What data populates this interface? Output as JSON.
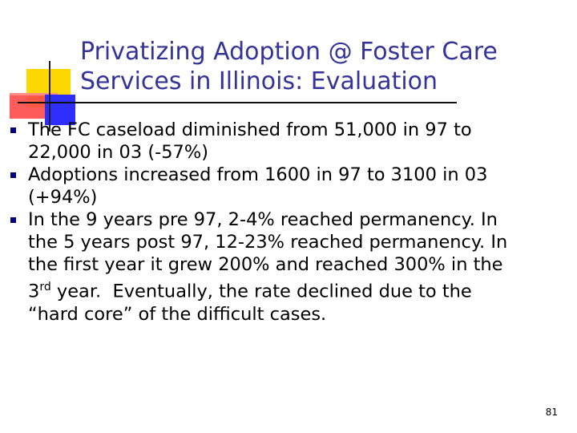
{
  "slide": {
    "title_line1": "Privatizing Adoption @ Foster Care",
    "title_line2": "Services in Illinois: Evaluation",
    "page_number": "81",
    "colors": {
      "title": "#333399",
      "bullet": "#000080",
      "text": "#000000",
      "deco_yellow": "#ffd700",
      "deco_red": "#ff4a4a",
      "deco_blue": "#2e2eff"
    },
    "bullets": [
      {
        "line1": "The FC caseload diminished from 51,000 in 97 to",
        "line2": "22,000 in 03 (-57%)"
      },
      {
        "line1": "Adoptions increased from 1600 in 97 to 3100 in 03",
        "line2": "(+94%)"
      },
      {
        "line1": "In the 9 years pre 97, 2-4% reached permanency.  In",
        "line2": "the 5 years post 97, 12-23% reached permanency. In",
        "line3": "the first year it grew 200% and reached 300% in the",
        "line4_prefix": "3",
        "line4_superscript": "rd",
        "line4_suffix": " year.  Eventually, the rate declined due to the",
        "line5": "“hard core” of the difficult cases."
      }
    ]
  }
}
